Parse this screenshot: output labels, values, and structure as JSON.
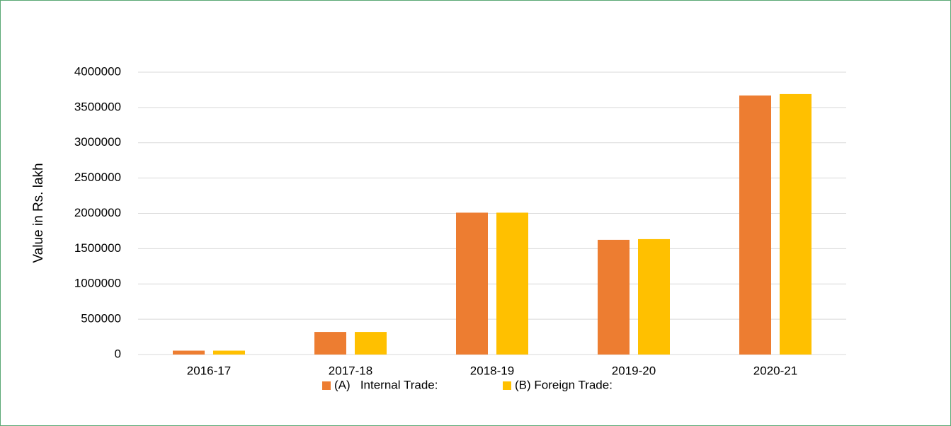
{
  "chart_data": {
    "type": "bar",
    "ylabel": "Value in Rs. lakh",
    "categories": [
      "2016-17",
      "2017-18",
      "2018-19",
      "2019-20",
      "2020-21"
    ],
    "series": [
      {
        "name": "(A)   Internal Trade:",
        "color": "#ED7D31",
        "values": [
          55000,
          320000,
          2010000,
          1625000,
          3670000
        ]
      },
      {
        "name": "(B) Foreign Trade:",
        "color": "#FFC000",
        "values": [
          55000,
          320000,
          2010000,
          1635000,
          3690000
        ]
      }
    ],
    "ylim": [
      0,
      4000000
    ],
    "yticks": [
      0,
      500000,
      1000000,
      1500000,
      2000000,
      2500000,
      3000000,
      3500000,
      4000000
    ],
    "grid": true,
    "legend": "bottom"
  }
}
